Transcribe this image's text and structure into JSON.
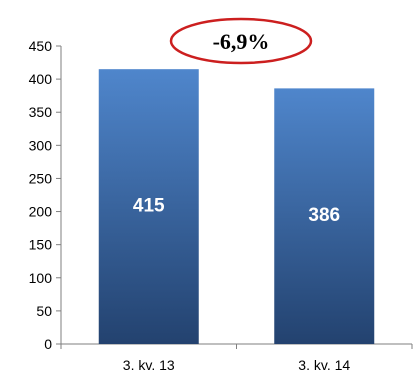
{
  "chart_data": {
    "type": "bar",
    "categories": [
      "3. kv. 13",
      "3. kv. 14"
    ],
    "values": [
      415,
      386
    ],
    "data_labels": [
      "415",
      "386"
    ],
    "ylim": [
      0,
      450
    ],
    "yticks": [
      0,
      50,
      100,
      150,
      200,
      250,
      300,
      350,
      400,
      450
    ],
    "grid": false,
    "legend": "none",
    "title": "",
    "xlabel": "",
    "ylabel": "",
    "annotation": {
      "text": "-6,9%",
      "style": "red ellipse outline"
    },
    "colors": {
      "bar_top": "#4f86cc",
      "bar_bottom": "#23426f",
      "annotation_border": "#cc1f1f",
      "axis": "#7f7f7f"
    }
  }
}
